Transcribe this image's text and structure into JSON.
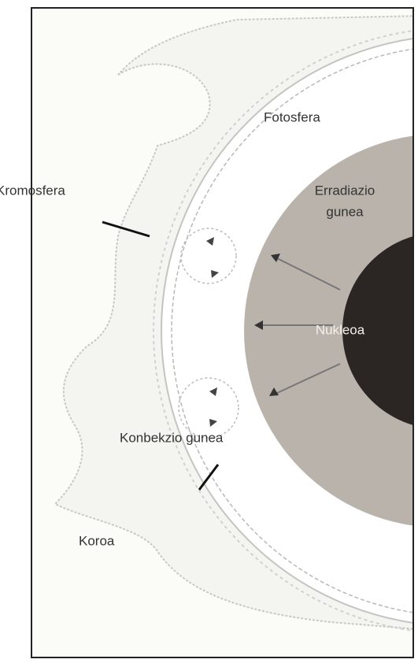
{
  "labels": {
    "photosphere": "Fotosfera",
    "chromosphere": "Kromosfera",
    "radiation_zone": [
      "Erradiazio",
      "gunea"
    ],
    "core": "Nukleoa",
    "convection_zone": "Konbekzio gunea",
    "corona": "Koroa"
  }
}
